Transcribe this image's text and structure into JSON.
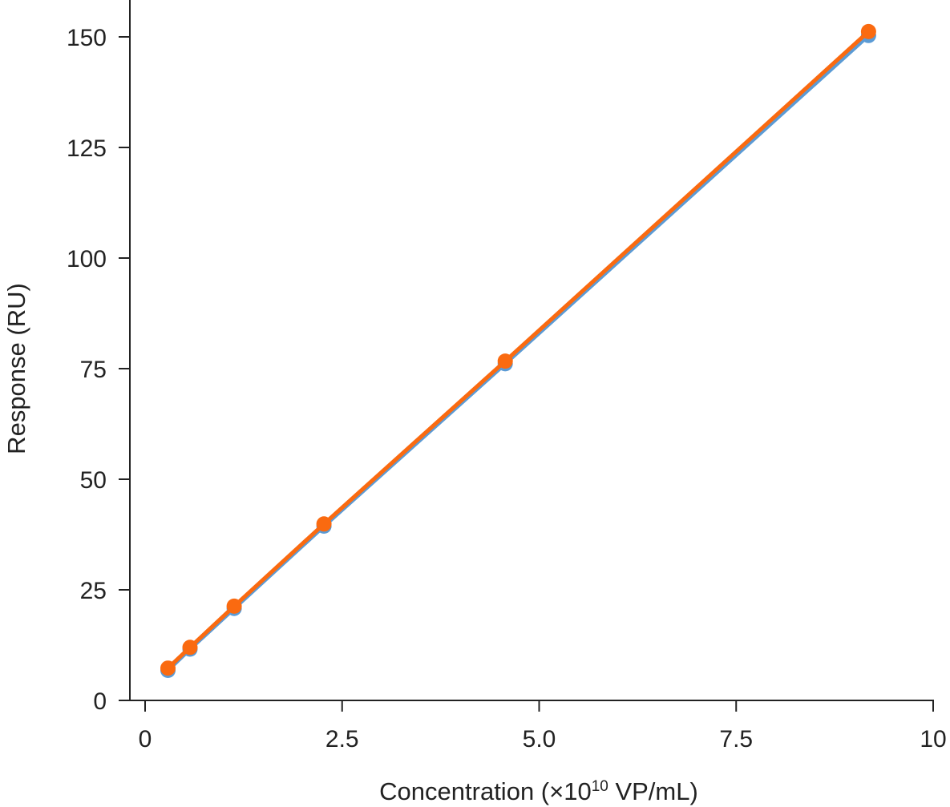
{
  "chart_data": {
    "type": "line",
    "xlabel": {
      "prefix": "Concentration (×10",
      "superscript": "10",
      "suffix": " VP/mL)"
    },
    "ylabel": "Response (RU)",
    "xlim": [
      0,
      10
    ],
    "ylim": [
      0,
      155
    ],
    "x_ticks": [
      0,
      2.5,
      5.0,
      7.5,
      10
    ],
    "x_tick_labels": [
      "0",
      "2.5",
      "5.0",
      "7.5",
      "10"
    ],
    "y_ticks": [
      0,
      25,
      50,
      75,
      100,
      125,
      150
    ],
    "y_tick_labels": [
      "0",
      "25",
      "50",
      "75",
      "100",
      "125",
      "150"
    ],
    "grid": false,
    "series": [
      {
        "color": "#5b9bd5",
        "x": [
          0.29,
          0.57,
          1.13,
          2.27,
          4.57,
          9.18
        ],
        "y": [
          6.8,
          11.6,
          20.8,
          39.4,
          76.1,
          150.3
        ]
      },
      {
        "color": "#fa6a10",
        "x": [
          0.29,
          0.57,
          1.13,
          2.27,
          4.57,
          9.18
        ],
        "y": [
          7.3,
          12.0,
          21.3,
          39.9,
          76.7,
          151.2
        ]
      }
    ]
  }
}
